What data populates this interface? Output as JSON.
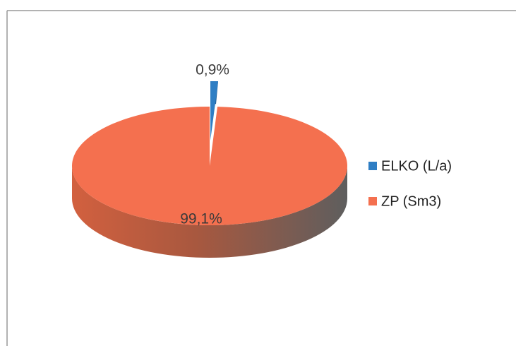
{
  "chart_data": {
    "type": "pie",
    "categories": [
      "ELKO (L/a)",
      "ZP (Sm3)"
    ],
    "values": [
      0.9,
      99.1
    ],
    "value_labels": [
      "0,9%",
      "99,1%"
    ],
    "colors": [
      "#2e7ec4",
      "#f4704f"
    ],
    "legend": "right"
  }
}
